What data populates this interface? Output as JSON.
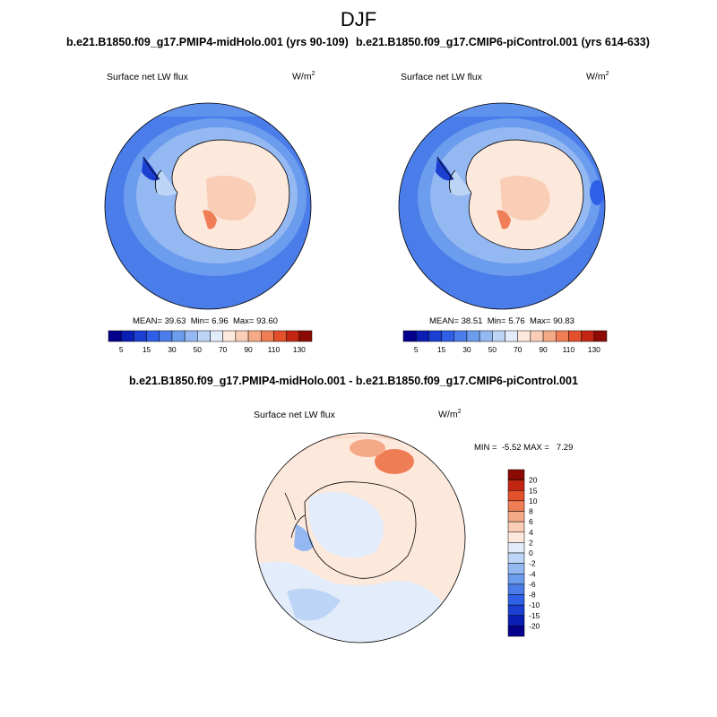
{
  "figure": {
    "title": "DJF",
    "variable": "Surface net LW flux",
    "units_base": "W/m",
    "units_exp": "2"
  },
  "panels": [
    {
      "case_title": "b.e21.B1850.f09_g17.PMIP4-midHolo.001 (yrs 90-109)",
      "stats": {
        "mean_label": "MEAN=",
        "mean": "39.63",
        "min_label": "Min=",
        "min": "6.96",
        "max_label": "Max=",
        "max": "93.60"
      }
    },
    {
      "case_title": "b.e21.B1850.f09_g17.CMIP6-piControl.001 (yrs 614-633)",
      "stats": {
        "mean_label": "MEAN=",
        "mean": "38.51",
        "min_label": "Min=",
        "min": "5.76",
        "max_label": "Max=",
        "max": "90.83"
      }
    }
  ],
  "diff_panel": {
    "case_title": "b.e21.B1850.f09_g17.PMIP4-midHolo.001 - b.e21.B1850.f09_g17.CMIP6-piControl.001",
    "stats_text": "MIN =  -5.52 MAX =   7.29"
  },
  "chart_data": [
    {
      "type": "heatmap",
      "projection": "south-polar-stereographic",
      "colorbar": {
        "levels": [
          5,
          10,
          15,
          20,
          30,
          40,
          50,
          60,
          70,
          80,
          90,
          100,
          110,
          120,
          130
        ],
        "tick_labels": [
          "5",
          "15",
          "30",
          "50",
          "70",
          "90",
          "110",
          "130"
        ],
        "colors": [
          "#04008c",
          "#0a1eb4",
          "#1a3fd1",
          "#2f5fe6",
          "#4a7de9",
          "#6c9cee",
          "#94b8f1",
          "#bcd4f5",
          "#e2ecfa",
          "#fde8dc",
          "#f9cdb6",
          "#f5aa87",
          "#ef7e56",
          "#e2502c",
          "#c22612",
          "#8c0a04"
        ]
      },
      "mean": 39.63,
      "min": 6.96,
      "max": 93.6
    },
    {
      "type": "heatmap",
      "projection": "south-polar-stereographic",
      "colorbar": {
        "levels": [
          5,
          10,
          15,
          20,
          30,
          40,
          50,
          60,
          70,
          80,
          90,
          100,
          110,
          120,
          130
        ],
        "tick_labels": [
          "5",
          "15",
          "30",
          "50",
          "70",
          "90",
          "110",
          "130"
        ],
        "colors": [
          "#04008c",
          "#0a1eb4",
          "#1a3fd1",
          "#2f5fe6",
          "#4a7de9",
          "#6c9cee",
          "#94b8f1",
          "#bcd4f5",
          "#e2ecfa",
          "#fde8dc",
          "#f9cdb6",
          "#f5aa87",
          "#ef7e56",
          "#e2502c",
          "#c22612",
          "#8c0a04"
        ]
      },
      "mean": 38.51,
      "min": 5.76,
      "max": 90.83
    },
    {
      "type": "heatmap",
      "projection": "south-polar-stereographic",
      "colorbar": {
        "levels": [
          -20,
          -15,
          -10,
          -8,
          -6,
          -4,
          -2,
          0,
          2,
          4,
          6,
          8,
          10,
          15,
          20
        ],
        "tick_labels": [
          "20",
          "15",
          "10",
          "8",
          "6",
          "4",
          "2",
          "0",
          "-2",
          "-4",
          "-6",
          "-8",
          "-10",
          "-15",
          "-20"
        ],
        "colors": [
          "#04008c",
          "#0a1eb4",
          "#1a3fd1",
          "#2f5fe6",
          "#4a7de9",
          "#6c9cee",
          "#94b8f1",
          "#bcd4f5",
          "#e2ecfa",
          "#fde8dc",
          "#f9cdb6",
          "#f5aa87",
          "#ef7e56",
          "#e2502c",
          "#c22612",
          "#8c0a04"
        ]
      },
      "min": -5.52,
      "max": 7.29
    }
  ]
}
